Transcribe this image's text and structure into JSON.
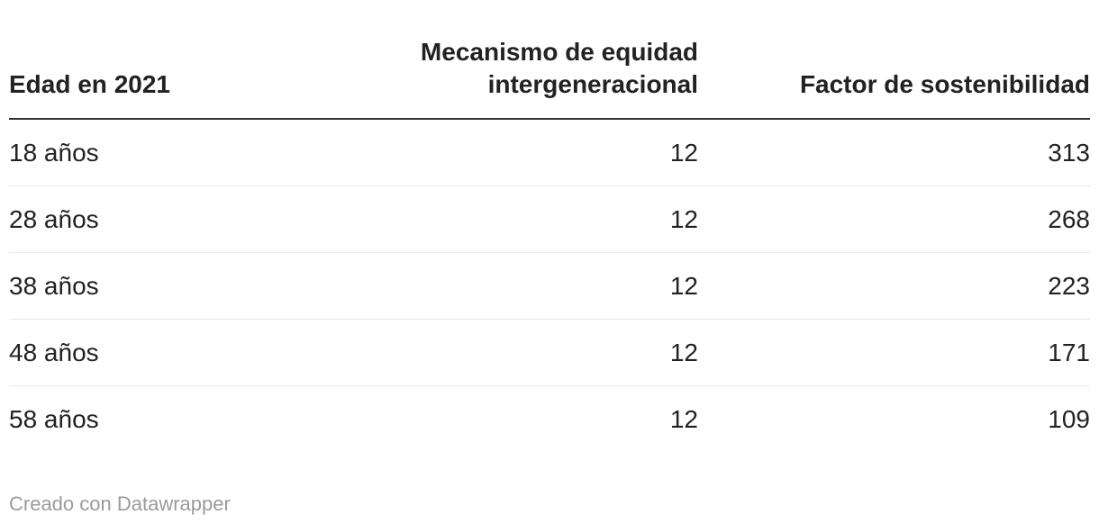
{
  "colors": {
    "background": "#ffffff",
    "text": "#222222",
    "header_rule": "#333333",
    "row_separator": "#e8e8e8",
    "footer_text": "#9b9b9b"
  },
  "table": {
    "columns": [
      {
        "label": "Edad en 2021",
        "align": "left"
      },
      {
        "label": "Mecanismo de equidad intergeneracional",
        "lines": [
          "Mecanismo de equidad",
          "intergeneracional"
        ],
        "align": "right"
      },
      {
        "label": "Factor de sostenibilidad",
        "align": "right"
      }
    ],
    "rows": [
      {
        "edad": "18 años",
        "mecanismo": "12",
        "factor": "313"
      },
      {
        "edad": "28 años",
        "mecanismo": "12",
        "factor": "268"
      },
      {
        "edad": "38 años",
        "mecanismo": "12",
        "factor": "223"
      },
      {
        "edad": "48 años",
        "mecanismo": "12",
        "factor": "171"
      },
      {
        "edad": "58 años",
        "mecanismo": "12",
        "factor": "109"
      }
    ]
  },
  "footer": {
    "attribution": "Creado con Datawrapper"
  },
  "chart_data": {
    "type": "table",
    "columns": [
      "Edad en 2021",
      "Mecanismo de equidad intergeneracional",
      "Factor de sostenibilidad"
    ],
    "rows": [
      [
        "18 años",
        12,
        313
      ],
      [
        "28 años",
        12,
        268
      ],
      [
        "38 años",
        12,
        223
      ],
      [
        "48 años",
        12,
        171
      ],
      [
        "58 años",
        12,
        109
      ]
    ],
    "layout": {
      "grid": "horizontal-row-separators",
      "header_align": [
        "left",
        "right",
        "right"
      ],
      "attribution": "Creado con Datawrapper"
    }
  }
}
